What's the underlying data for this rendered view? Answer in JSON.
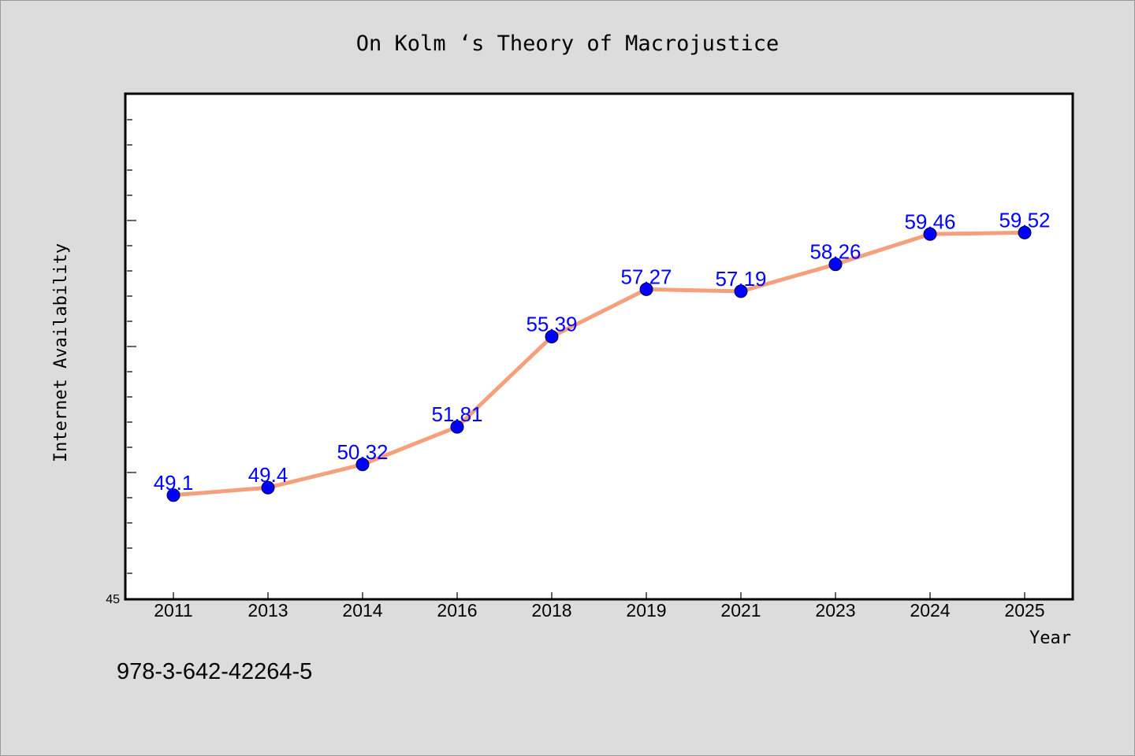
{
  "chart_data": {
    "type": "line",
    "title": "On Kolm ‘s Theory of Macrojustice",
    "xlabel": "Year",
    "ylabel": "Internet Availability",
    "categories": [
      "2011",
      "2013",
      "2014",
      "2016",
      "2018",
      "2019",
      "2021",
      "2023",
      "2024",
      "2025"
    ],
    "series": [
      {
        "values": [
          49.1,
          49.4,
          50.32,
          51.81,
          55.39,
          57.27,
          57.19,
          58.26,
          59.46,
          59.52
        ],
        "labels": [
          "49.1",
          "49.4",
          "50.32",
          "51.81",
          "55.39",
          "57.27",
          "57.19",
          "58.26",
          "59.46",
          "59.52"
        ]
      }
    ],
    "ylim": [
      45,
      65
    ],
    "y_min_label": "45",
    "grid": false,
    "legend": "none",
    "colors": {
      "line": "#f4a07c",
      "marker": "#0000ff",
      "data_label": "#0000ff",
      "plot_background": "#ffffff",
      "page_background": "#dcdcdc"
    }
  },
  "annotation": "978-3-642-42264-5"
}
